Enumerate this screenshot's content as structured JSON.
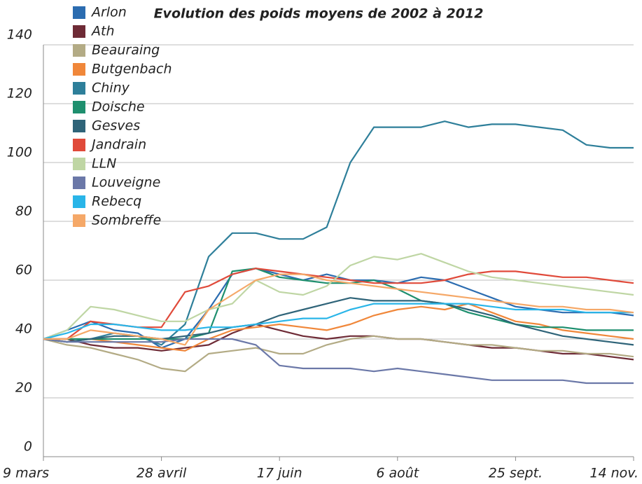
{
  "chart_data": {
    "type": "line",
    "title": "Evolution des poids moyens de 2002 à 2012",
    "x": [
      0,
      10,
      20,
      30,
      40,
      50,
      60,
      70,
      80,
      90,
      100,
      110,
      120,
      130,
      140,
      150,
      160,
      170,
      180,
      190,
      200,
      210,
      220,
      230,
      240,
      250
    ],
    "xlim": [
      0,
      250
    ],
    "xticks": [
      {
        "value": 0,
        "label": "9 mars"
      },
      {
        "value": 50,
        "label": "28 avril"
      },
      {
        "value": 100,
        "label": "17 juin"
      },
      {
        "value": 150,
        "label": "6 août"
      },
      {
        "value": 200,
        "label": "25 sept."
      },
      {
        "value": 250,
        "label": "14 nov."
      }
    ],
    "ylim": [
      0,
      140
    ],
    "yticks": [
      0,
      20,
      40,
      60,
      80,
      100,
      120,
      140
    ],
    "grid": true,
    "series": [
      {
        "name": "Arlon",
        "color": "#2b6cb0",
        "values": [
          40,
          43,
          46,
          43,
          42,
          37,
          40,
          50,
          62,
          64,
          62,
          60,
          62,
          60,
          60,
          59,
          61,
          60,
          57,
          54,
          51,
          50,
          49,
          49,
          49,
          48
        ]
      },
      {
        "name": "Ath",
        "color": "#6e2b36",
        "values": [
          40,
          40,
          38,
          37,
          37,
          36,
          37,
          38,
          42,
          45,
          43,
          41,
          40,
          41,
          41,
          40,
          40,
          39,
          38,
          37,
          37,
          36,
          35,
          35,
          34,
          33
        ]
      },
      {
        "name": "Beauraing",
        "color": "#b3ab85",
        "values": [
          40,
          38,
          37,
          35,
          33,
          30,
          29,
          35,
          36,
          37,
          35,
          35,
          38,
          40,
          41,
          40,
          40,
          39,
          38,
          38,
          37,
          36,
          36,
          35,
          35,
          34
        ]
      },
      {
        "name": "Butgenbach",
        "color": "#f0873a",
        "values": [
          40,
          40,
          40,
          39,
          38,
          37,
          36,
          40,
          43,
          44,
          45,
          44,
          43,
          45,
          48,
          50,
          51,
          50,
          52,
          49,
          46,
          45,
          43,
          42,
          41,
          40
        ]
      },
      {
        "name": "Chiny",
        "color": "#2e7f9a",
        "values": [
          40,
          39,
          40,
          42,
          41,
          38,
          45,
          68,
          76,
          76,
          74,
          74,
          78,
          100,
          112,
          112,
          112,
          114,
          112,
          113,
          113,
          112,
          111,
          106,
          105,
          105
        ]
      },
      {
        "name": "Doische",
        "color": "#1e8f6e",
        "values": [
          40,
          40,
          40,
          40,
          40,
          40,
          40,
          42,
          63,
          64,
          61,
          60,
          59,
          59,
          60,
          57,
          53,
          52,
          49,
          47,
          45,
          44,
          44,
          43,
          43,
          43
        ]
      },
      {
        "name": "Gesves",
        "color": "#2f6479",
        "values": [
          40,
          39,
          40,
          41,
          41,
          40,
          41,
          42,
          44,
          45,
          48,
          50,
          52,
          54,
          53,
          53,
          53,
          52,
          50,
          48,
          45,
          43,
          41,
          40,
          39,
          38
        ]
      },
      {
        "name": "Jandrain",
        "color": "#e04a3a",
        "values": [
          40,
          40,
          46,
          45,
          44,
          44,
          56,
          58,
          62,
          64,
          63,
          62,
          61,
          60,
          59,
          59,
          59,
          60,
          62,
          63,
          63,
          62,
          61,
          61,
          60,
          59
        ]
      },
      {
        "name": "LLN",
        "color": "#bfd6a4",
        "values": [
          40,
          43,
          51,
          50,
          48,
          46,
          46,
          50,
          52,
          60,
          56,
          55,
          58,
          65,
          68,
          67,
          69,
          66,
          63,
          61,
          60,
          59,
          58,
          57,
          56,
          55
        ]
      },
      {
        "name": "Louveigne",
        "color": "#6b78a8",
        "values": [
          40,
          39,
          39,
          39,
          39,
          39,
          40,
          40,
          40,
          38,
          31,
          30,
          30,
          30,
          29,
          30,
          29,
          28,
          27,
          26,
          26,
          26,
          26,
          25,
          25,
          25
        ]
      },
      {
        "name": "Rebecq",
        "color": "#29b5e8",
        "values": [
          40,
          42,
          45,
          45,
          44,
          43,
          43,
          44,
          44,
          45,
          46,
          47,
          47,
          50,
          52,
          52,
          52,
          52,
          52,
          51,
          50,
          50,
          50,
          49,
          49,
          49
        ]
      },
      {
        "name": "Sombreffe",
        "color": "#f5a868",
        "values": [
          40,
          40,
          43,
          42,
          41,
          40,
          38,
          50,
          55,
          60,
          62,
          62,
          60,
          59,
          58,
          57,
          56,
          55,
          54,
          53,
          52,
          51,
          51,
          50,
          50,
          49
        ]
      }
    ]
  }
}
